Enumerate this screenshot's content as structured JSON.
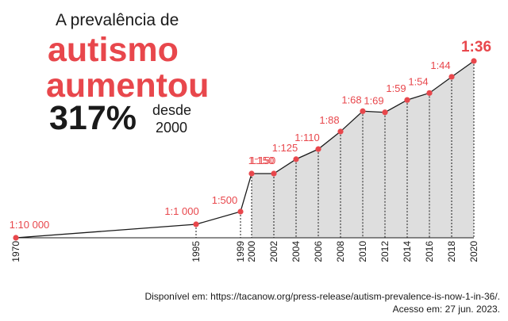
{
  "headline": {
    "line1": "A prevalência de",
    "word1": "autismo",
    "word2": "aumentou",
    "percent": "317%",
    "since_label": "desde",
    "since_year": "2000"
  },
  "source": {
    "line1": "Disponível em: https://tacanow.org/press-release/autism-prevalence-is-now-1-in-36/.",
    "line2": "Acesso em: 27 jun. 2023."
  },
  "colors": {
    "accent": "#e8474c",
    "line": "#1a1a1a",
    "fill": "#dedede",
    "text": "#1a1a1a"
  },
  "chart_data": {
    "type": "line",
    "title": "A prevalência de autismo aumentou 317% desde 2000",
    "xlabel": "",
    "ylabel": "",
    "grid": false,
    "points": [
      {
        "year": 1970,
        "label": "1:10 000",
        "ratio": 10000
      },
      {
        "year": 1995,
        "label": "1:1 000",
        "ratio": 1000
      },
      {
        "year": 1999,
        "label": "1:500",
        "ratio": 500
      },
      {
        "year": 2000,
        "label": "1:150",
        "ratio": 150
      },
      {
        "year": 2002,
        "label": "1:150",
        "ratio": 150
      },
      {
        "year": 2004,
        "label": "1:125",
        "ratio": 125
      },
      {
        "year": 2006,
        "label": "1:110",
        "ratio": 110
      },
      {
        "year": 2008,
        "label": "1:88",
        "ratio": 88
      },
      {
        "year": 2010,
        "label": "1:68",
        "ratio": 68
      },
      {
        "year": 2012,
        "label": "1:69",
        "ratio": 69
      },
      {
        "year": 2014,
        "label": "1:59",
        "ratio": 59
      },
      {
        "year": 2016,
        "label": "1:54",
        "ratio": 54
      },
      {
        "year": 2018,
        "label": "1:44",
        "ratio": 44
      },
      {
        "year": 2020,
        "label": "1:36",
        "ratio": 36
      }
    ],
    "x_ticks": [
      "1970",
      "1995",
      "1999",
      "2000",
      "2002",
      "2004",
      "2006",
      "2008",
      "2010",
      "2012",
      "2014",
      "2016",
      "2018",
      "2020"
    ],
    "shaded_from_year": 2000,
    "highlight_last": true
  }
}
